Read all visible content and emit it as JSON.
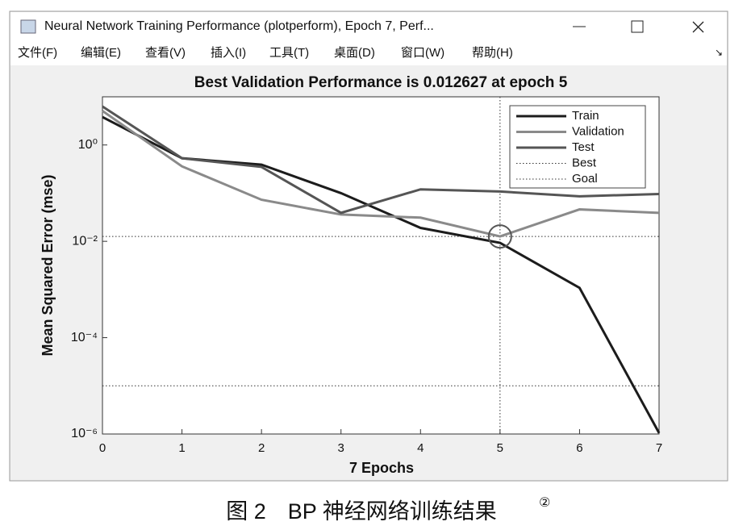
{
  "window": {
    "title": "Neural Network Training Performance (plotperform), Epoch 7, Perf...",
    "menu": [
      "文件(F)",
      "编辑(E)",
      "查看(V)",
      "插入(I)",
      "工具(T)",
      "桌面(D)",
      "窗口(W)",
      "帮助(H)"
    ]
  },
  "chart_data": {
    "type": "line",
    "title": "Best Validation Performance is 0.012627 at epoch 5",
    "xlabel": "7 Epochs",
    "ylabel": "Mean Squared Error  (mse)",
    "x": [
      0,
      1,
      2,
      3,
      4,
      5,
      6,
      7
    ],
    "xlim": [
      0,
      7
    ],
    "xticks": [
      0,
      1,
      2,
      3,
      4,
      5,
      6,
      7
    ],
    "ylim": [
      1e-06,
      10
    ],
    "log_y": true,
    "yticks": [
      {
        "value": 1,
        "label": "10⁰"
      },
      {
        "value": 0.01,
        "label": "10⁻²"
      },
      {
        "value": 0.0001,
        "label": "10⁻⁴"
      },
      {
        "value": 1e-06,
        "label": "10⁻⁶"
      }
    ],
    "series": [
      {
        "name": "Train",
        "color": "#1c1c1c",
        "values": [
          3.8,
          0.53,
          0.39,
          0.1,
          0.019,
          0.0093,
          0.00108,
          1.05e-06
        ]
      },
      {
        "name": "Validation",
        "color": "#8a8a8a",
        "values": [
          5.1,
          0.36,
          0.073,
          0.036,
          0.031,
          0.012627,
          0.046,
          0.039
        ]
      },
      {
        "name": "Test",
        "color": "#555555",
        "values": [
          6.3,
          0.53,
          0.35,
          0.039,
          0.12,
          0.108,
          0.086,
          0.096
        ]
      }
    ],
    "best": {
      "name": "Best",
      "epoch": 5,
      "value": 0.012627,
      "color": "#333333"
    },
    "goal": {
      "name": "Goal",
      "value": 1e-05,
      "color": "#333333"
    },
    "legend": "top-right"
  },
  "caption": {
    "text": "图 2　BP 神经网络训练结果",
    "note": "②"
  }
}
